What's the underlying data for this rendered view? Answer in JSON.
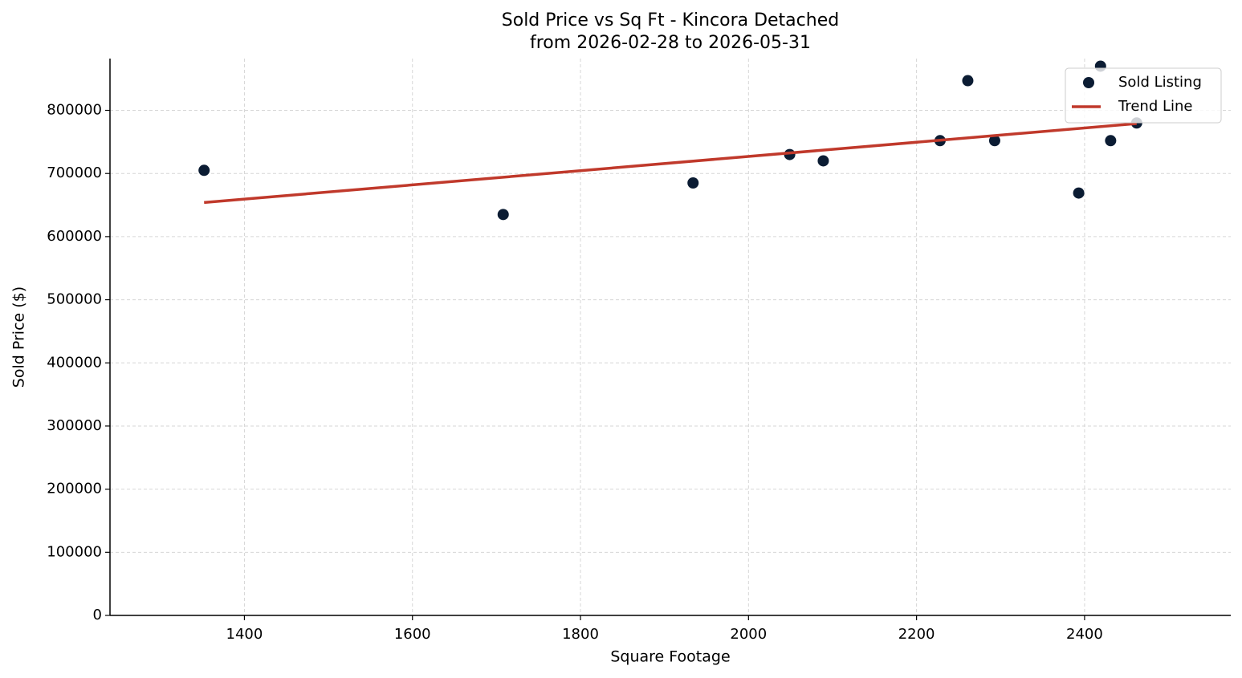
{
  "chart_data": {
    "type": "scatter",
    "title": "Sold Price vs Sq Ft - Kincora Detached",
    "subtitle": "from 2026-02-28 to 2026-05-31",
    "x_label": "Square Footage",
    "y_label": "Sold Price ($)",
    "xlim": [
      1240,
      2574
    ],
    "ylim": [
      0,
      882000
    ],
    "xticks": [
      1400,
      1600,
      1800,
      2000,
      2200,
      2400
    ],
    "yticks": [
      0,
      100000,
      200000,
      300000,
      400000,
      500000,
      600000,
      700000,
      800000
    ],
    "grid": true,
    "legend": "upper right",
    "series": [
      {
        "name": "Sold Listing",
        "type": "scatter",
        "color": "#0b1c33",
        "x": [
          1352,
          1708,
          1934,
          2049,
          2089,
          2228,
          2261,
          2293,
          2393,
          2419,
          2431,
          2462
        ],
        "values": [
          705000,
          635000,
          685000,
          730000,
          720000,
          752000,
          847000,
          752000,
          669000,
          870000,
          752000,
          780000
        ]
      },
      {
        "name": "Trend Line",
        "type": "line",
        "color": "#c0392b",
        "x": [
          1352,
          2462
        ],
        "values": [
          654000,
          779000
        ]
      }
    ]
  }
}
